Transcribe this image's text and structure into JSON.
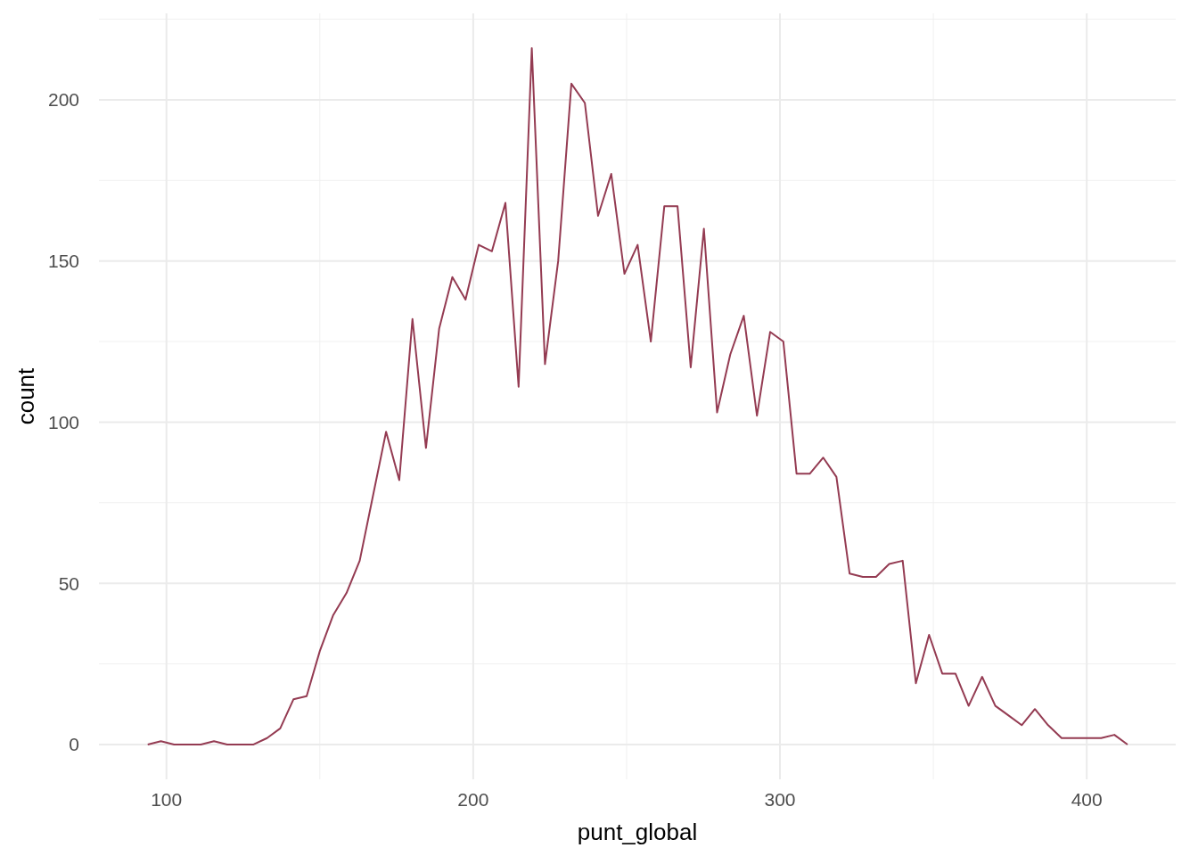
{
  "chart_data": {
    "type": "line",
    "xlabel": "punt_global",
    "ylabel": "count",
    "grid": true,
    "xlim": [
      78,
      429
    ],
    "ylim": [
      -10.8,
      226.8
    ],
    "xticks": [
      100,
      200,
      300,
      400
    ],
    "yticks": [
      0,
      50,
      100,
      150,
      200
    ],
    "series": [
      {
        "color": "#943b52",
        "x": [
          93.9,
          98.2,
          102.5,
          106.9,
          111.2,
          115.5,
          119.8,
          124.1,
          128.4,
          132.8,
          137.1,
          141.4,
          145.7,
          150.0,
          154.3,
          158.7,
          163.0,
          167.3,
          171.6,
          175.9,
          180.2,
          184.6,
          188.9,
          193.2,
          197.5,
          201.8,
          206.1,
          210.5,
          214.8,
          219.1,
          223.4,
          227.7,
          232.0,
          236.4,
          240.7,
          245.0,
          249.3,
          253.6,
          257.9,
          262.3,
          266.6,
          270.9,
          275.2,
          279.5,
          283.8,
          288.2,
          292.5,
          296.8,
          301.1,
          305.4,
          309.7,
          314.1,
          318.4,
          322.7,
          327.0,
          331.3,
          335.6,
          340.0,
          344.3,
          348.6,
          352.9,
          357.2,
          361.5,
          365.9,
          370.2,
          374.5,
          378.8,
          383.1,
          387.4,
          391.8,
          396.1,
          400.4,
          404.7,
          409.0,
          413.3
        ],
        "values": [
          0,
          1,
          0,
          0,
          0,
          1,
          0,
          0,
          0,
          2,
          5,
          14,
          15,
          29,
          40,
          47,
          57,
          77,
          97,
          82,
          132,
          92,
          129,
          145,
          138,
          155,
          153,
          168,
          111,
          216,
          118,
          150,
          205,
          199,
          164,
          177,
          146,
          155,
          125,
          167,
          167,
          117,
          160,
          103,
          121,
          133,
          102,
          128,
          125,
          84,
          84,
          89,
          83,
          53,
          52,
          52,
          56,
          57,
          19,
          34,
          22,
          22,
          12,
          21,
          12,
          9,
          6,
          11,
          6,
          2,
          2,
          2,
          2,
          3,
          0
        ]
      }
    ]
  }
}
